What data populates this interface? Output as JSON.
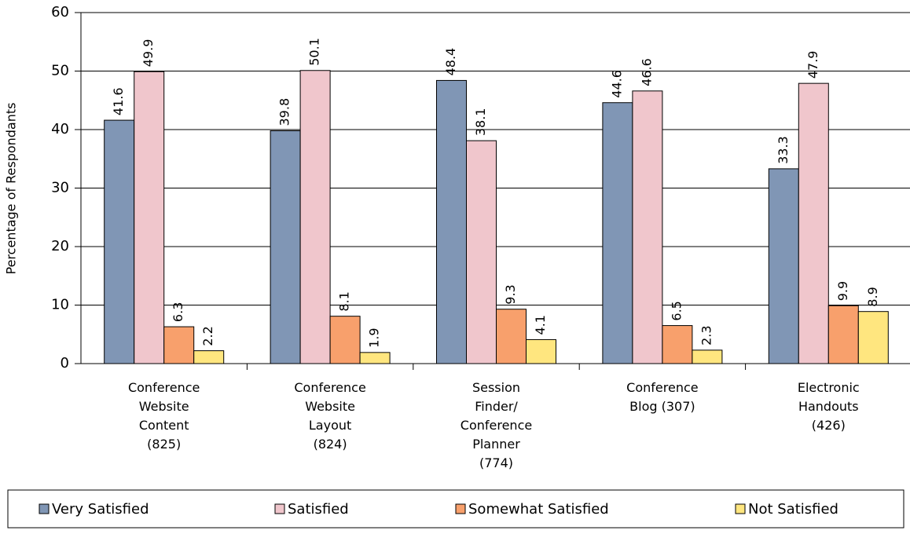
{
  "chart_data": {
    "type": "bar",
    "y_axis_label": "Percentage of Respondants",
    "categories": [
      "Conference\nWebsite\nContent\n(825)",
      "Conference\nWebsite\nLayout\n(824)",
      "Session\nFinder/\nConference\nPlanner\n(774)",
      "Conference\nBlog (307)",
      "Electronic\nHandouts\n(426)"
    ],
    "series": [
      {
        "name": "Very Satisfied",
        "color": "#8096b5",
        "values": [
          41.6,
          39.8,
          48.4,
          44.6,
          33.3
        ]
      },
      {
        "name": "Satisfied",
        "color": "#f0c6cc",
        "values": [
          49.9,
          50.1,
          38.1,
          46.6,
          47.9
        ]
      },
      {
        "name": "Somewhat Satisfied",
        "color": "#f8a06c",
        "values": [
          6.3,
          8.1,
          9.3,
          6.5,
          9.9
        ]
      },
      {
        "name": "Not Satisfied",
        "color": "#ffe67f",
        "values": [
          2.2,
          1.9,
          4.1,
          2.3,
          8.9
        ]
      }
    ],
    "ylim": [
      0,
      60
    ],
    "yticks": [
      0,
      10,
      20,
      30,
      40,
      50,
      60
    ],
    "grid": true,
    "legend": "bottom"
  }
}
